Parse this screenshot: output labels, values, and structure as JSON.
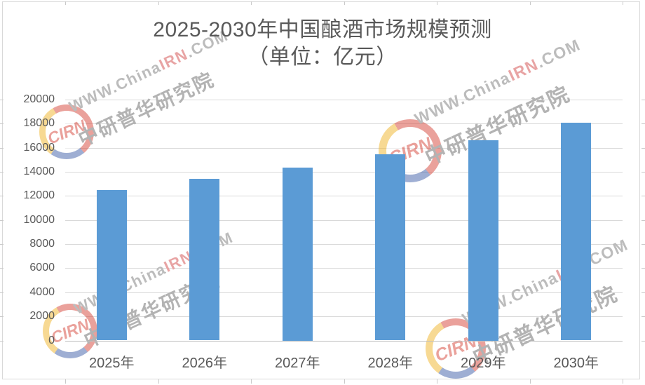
{
  "title": {
    "line1": "2025-2030年中国酿酒市场规模预测",
    "line2": "（单位：亿元）"
  },
  "chart_data": {
    "type": "bar",
    "title": "2025-2030年中国酿酒市场规模预测",
    "subtitle": "（单位：亿元）",
    "unit": "亿元",
    "categories": [
      "2025年",
      "2026年",
      "2027年",
      "2028年",
      "2029年",
      "2030年"
    ],
    "values": [
      12500,
      13400,
      14350,
      15450,
      16650,
      18100
    ],
    "ylim": [
      0,
      20000
    ],
    "yticks": [
      0,
      2000,
      4000,
      6000,
      8000,
      10000,
      12000,
      14000,
      16000,
      18000,
      20000
    ],
    "grid": true,
    "legend_position": "none",
    "bar_color": "#5B9BD5"
  },
  "watermark": {
    "site_full": "WWW.ChinaIRN.COM",
    "site_prefix": "WWW.China",
    "site_highlight": "IRN",
    "site_suffix": ".COM",
    "org_name": "中研普华研究院",
    "logo_text": "CIRN"
  },
  "colors": {
    "bar": "#5B9BD5",
    "title_text": "#595959",
    "axis_text": "#595959",
    "gridline": "#D9D9D9",
    "axis_line": "#BFBFBF",
    "frame": "#D9D9D9",
    "watermark_gray": "#BCBCBC",
    "watermark_pink": "#E8A4A4",
    "logo_red": "#D6453A",
    "logo_yellow": "#F0B429",
    "logo_blue": "#3F5FA8"
  }
}
